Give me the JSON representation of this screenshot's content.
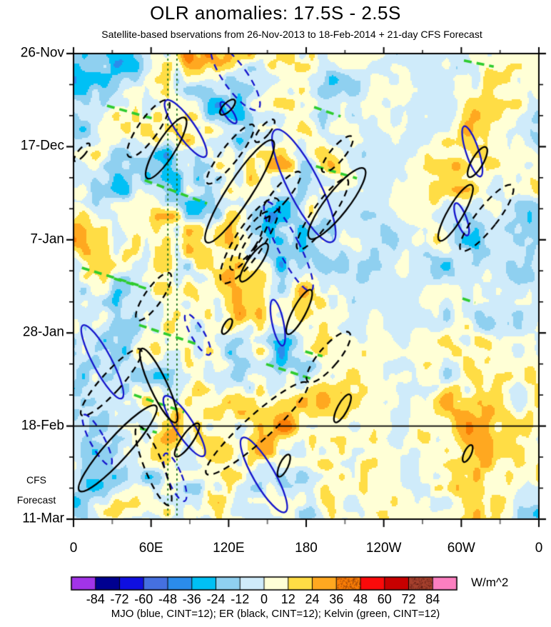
{
  "page": {
    "title": "OLR anomalies: 17.5S - 2.5S",
    "subtitle": "Satellite-based bservations from 26-Nov-2013 to 18-Feb-2014 + 21-day CFS Forecast"
  },
  "chart_data": {
    "type": "heatmap",
    "title": "OLR anomalies: 17.5S - 2.5S",
    "subtitle": "Satellite-based bservations from 26-Nov-2013 to 18-Feb-2014 + 21-day CFS Forecast",
    "description": "Hovmoller (time-longitude) diagram of OLR anomalies averaged 17.5S-2.5S; filled contours of anomaly magnitude with MJO, ER and Kelvin wave contour overlays; observations above the 18-Feb line, 21-day CFS forecast below.",
    "x_axis": {
      "range_deg": [
        0,
        360
      ],
      "major_ticks": [
        {
          "label": "0",
          "lon": 0
        },
        {
          "label": "60E",
          "lon": 60
        },
        {
          "label": "120E",
          "lon": 120
        },
        {
          "label": "180",
          "lon": 180
        },
        {
          "label": "120W",
          "lon": 240
        },
        {
          "label": "60W",
          "lon": 300
        },
        {
          "label": "0",
          "lon": 360
        }
      ],
      "minor_step_deg": 30
    },
    "y_axis": {
      "range_days": [
        0,
        105
      ],
      "major_ticks": [
        {
          "label": "26-Nov",
          "day": 0
        },
        {
          "label": "17-Dec",
          "day": 21
        },
        {
          "label": "7-Jan",
          "day": 42
        },
        {
          "label": "28-Jan",
          "day": 63
        },
        {
          "label": "18-Feb",
          "day": 84
        },
        {
          "label": "11-Mar",
          "day": 105
        }
      ],
      "minor_step_days": 7
    },
    "forecast": {
      "divider_day": 84,
      "divider_date": "18-Feb",
      "label_line1": "CFS",
      "label_line2": "Forecast"
    },
    "colorbar": {
      "units": "W/m^2",
      "levels": [
        -84,
        -72,
        -60,
        -48,
        -36,
        -24,
        -12,
        0,
        12,
        24,
        36,
        48,
        60,
        72,
        84
      ],
      "colors": [
        "#A234E8",
        "#000090",
        "#0F0FE0",
        "#4570E0",
        "#2B8CEB",
        "#00C0F5",
        "#8FD0F0",
        "#CFEBFA",
        "#FFFFD6",
        "#FFDD45",
        "#FFA820",
        "#F97D06",
        "#FB0A0A",
        "#C80000",
        "#A5402D",
        "#FC7FC0"
      ],
      "textured_segment_indices": [
        11,
        14
      ]
    },
    "legend_caption": "MJO (blue, CINT=12); ER (black, CINT=12); Kelvin (green, CINT=12)",
    "contour_colors": {
      "mjo": "#1414CC",
      "er": "#000000",
      "kelvin": "#2ECC2E",
      "kelvin_guides": "#157015"
    },
    "vertical_guide_lons": [
      73,
      80
    ],
    "ellipses": [
      {
        "c": "mjo",
        "dash": false,
        "fx": 0.241,
        "fy": 0.161,
        "a": 48,
        "b": 13,
        "rot": -35
      },
      {
        "c": "mjo",
        "dash": false,
        "fx": 0.495,
        "fy": 0.284,
        "a": 88,
        "b": 22,
        "rot": -27
      },
      {
        "c": "mjo",
        "dash": false,
        "fx": 0.857,
        "fy": 0.21,
        "a": 37,
        "b": 9,
        "rot": -18
      },
      {
        "c": "mjo",
        "dash": false,
        "fx": 0.834,
        "fy": 0.356,
        "a": 24,
        "b": 7,
        "rot": -20
      },
      {
        "c": "mjo",
        "dash": false,
        "fx": 0.062,
        "fy": 0.662,
        "a": 58,
        "b": 13,
        "rot": -28
      },
      {
        "c": "mjo",
        "dash": false,
        "fx": 0.238,
        "fy": 0.8,
        "a": 50,
        "b": 13,
        "rot": -33
      },
      {
        "c": "mjo",
        "dash": false,
        "fx": 0.409,
        "fy": 0.905,
        "a": 60,
        "b": 15,
        "rot": -30
      },
      {
        "c": "mjo",
        "dash": false,
        "fx": 0.439,
        "fy": 0.578,
        "a": 33,
        "b": 8,
        "rot": -12
      },
      {
        "c": "mjo",
        "dash": false,
        "fx": 0.333,
        "fy": 0.127,
        "a": 18,
        "b": 6,
        "rot": -35
      },
      {
        "c": "mjo",
        "dash": true,
        "fx": 0.348,
        "fy": 0.051,
        "a": 55,
        "b": 17,
        "rot": -35
      },
      {
        "c": "mjo",
        "dash": true,
        "fx": 0.267,
        "fy": 0.603,
        "a": 33,
        "b": 9,
        "rot": -30
      },
      {
        "c": "mjo",
        "dash": true,
        "fx": 0.051,
        "fy": 0.83,
        "a": 40,
        "b": 10,
        "rot": -28
      },
      {
        "c": "mjo",
        "dash": true,
        "fx": 0.462,
        "fy": 0.414,
        "a": 70,
        "b": 15,
        "rot": -27
      },
      {
        "c": "mjo",
        "dash": true,
        "fx": 0.218,
        "fy": 0.91,
        "a": 36,
        "b": 10,
        "rot": -22
      },
      {
        "c": "er",
        "dash": false,
        "fx": 0.199,
        "fy": 0.203,
        "a": 50,
        "b": 13,
        "rot": 32
      },
      {
        "c": "er",
        "dash": false,
        "fx": 0.357,
        "fy": 0.296,
        "a": 85,
        "b": 17,
        "rot": 33
      },
      {
        "c": "er",
        "dash": false,
        "fx": 0.095,
        "fy": 0.848,
        "a": 80,
        "b": 16,
        "rot": 42
      },
      {
        "c": "er",
        "dash": false,
        "fx": 0.183,
        "fy": 0.713,
        "a": 57,
        "b": 12,
        "rot": -25
      },
      {
        "c": "er",
        "dash": false,
        "fx": 0.244,
        "fy": 0.83,
        "a": 28,
        "b": 8,
        "rot": 35
      },
      {
        "c": "er",
        "dash": false,
        "fx": 0.485,
        "fy": 0.555,
        "a": 35,
        "b": 9,
        "rot": 28
      },
      {
        "c": "er",
        "dash": false,
        "fx": 0.33,
        "fy": 0.586,
        "a": 12,
        "b": 5,
        "rot": 30
      },
      {
        "c": "er",
        "dash": false,
        "fx": 0.566,
        "fy": 0.322,
        "a": 62,
        "b": 16,
        "rot": 38
      },
      {
        "c": "er",
        "dash": false,
        "fx": 0.388,
        "fy": 0.449,
        "a": 32,
        "b": 9,
        "rot": 35
      },
      {
        "c": "er",
        "dash": false,
        "fx": 0.821,
        "fy": 0.342,
        "a": 45,
        "b": 11,
        "rot": 30
      },
      {
        "c": "er",
        "dash": false,
        "fx": 0.868,
        "fy": 0.233,
        "a": 24,
        "b": 8,
        "rot": 30
      },
      {
        "c": "er",
        "dash": false,
        "fx": 0.578,
        "fy": 0.762,
        "a": 22,
        "b": 7,
        "rot": 28
      },
      {
        "c": "er",
        "dash": false,
        "fx": 0.847,
        "fy": 0.859,
        "a": 13,
        "b": 5,
        "rot": 25
      },
      {
        "c": "er",
        "dash": false,
        "fx": 0.452,
        "fy": 0.885,
        "a": 17,
        "b": 6,
        "rot": 25
      },
      {
        "c": "er",
        "dash": false,
        "fx": 0.331,
        "fy": 0.115,
        "a": 14,
        "b": 6,
        "rot": 45
      },
      {
        "c": "er",
        "dash": true,
        "fx": 0.161,
        "fy": 0.161,
        "a": 48,
        "b": 14,
        "rot": 35
      },
      {
        "c": "er",
        "dash": true,
        "fx": 0.337,
        "fy": 0.216,
        "a": 52,
        "b": 12,
        "rot": 38
      },
      {
        "c": "er",
        "dash": true,
        "fx": 0.411,
        "fy": 0.166,
        "a": 20,
        "b": 7,
        "rot": 40
      },
      {
        "c": "er",
        "dash": true,
        "fx": 0.445,
        "fy": 0.304,
        "a": 42,
        "b": 11,
        "rot": 40
      },
      {
        "c": "er",
        "dash": true,
        "fx": 0.379,
        "fy": 0.402,
        "a": 70,
        "b": 20,
        "rot": 33
      },
      {
        "c": "er",
        "dash": true,
        "fx": 0.379,
        "fy": 0.402,
        "a": 48,
        "b": 12,
        "rot": 33
      },
      {
        "c": "er",
        "dash": true,
        "fx": 0.381,
        "fy": 0.408,
        "a": 28,
        "b": 7,
        "rot": 33
      },
      {
        "c": "er",
        "dash": true,
        "fx": 0.535,
        "fy": 0.345,
        "a": 60,
        "b": 14,
        "rot": 35
      },
      {
        "c": "er",
        "dash": true,
        "fx": 0.567,
        "fy": 0.216,
        "a": 32,
        "b": 10,
        "rot": 40
      },
      {
        "c": "er",
        "dash": true,
        "fx": 0.081,
        "fy": 0.706,
        "a": 62,
        "b": 14,
        "rot": 42
      },
      {
        "c": "er",
        "dash": true,
        "fx": 0.172,
        "fy": 0.885,
        "a": 60,
        "b": 13,
        "rot": -22
      },
      {
        "c": "er",
        "dash": true,
        "fx": 0.394,
        "fy": 0.805,
        "a": 95,
        "b": 18,
        "rot": 48
      },
      {
        "c": "er",
        "dash": true,
        "fx": 0.548,
        "fy": 0.652,
        "a": 45,
        "b": 14,
        "rot": 40
      },
      {
        "c": "er",
        "dash": true,
        "fx": 0.172,
        "fy": 0.522,
        "a": 40,
        "b": 12,
        "rot": 35
      },
      {
        "c": "er",
        "dash": true,
        "fx": 0.888,
        "fy": 0.353,
        "a": 58,
        "b": 15,
        "rot": 38
      },
      {
        "c": "er",
        "dash": true,
        "fx": 0.018,
        "fy": 0.212,
        "a": 16,
        "b": 5,
        "rot": 40
      }
    ],
    "kelvin_segments": [
      {
        "x1": 0.072,
        "y1": 0.112,
        "x2": 0.172,
        "y2": 0.14
      },
      {
        "x1": 0.153,
        "y1": 0.272,
        "x2": 0.287,
        "y2": 0.322
      },
      {
        "x1": 0.018,
        "y1": 0.46,
        "x2": 0.141,
        "y2": 0.498
      },
      {
        "x1": 0.087,
        "y1": 0.483,
        "x2": 0.167,
        "y2": 0.508
      },
      {
        "x1": 0.141,
        "y1": 0.583,
        "x2": 0.271,
        "y2": 0.626
      },
      {
        "x1": 0.13,
        "y1": 0.733,
        "x2": 0.238,
        "y2": 0.77
      },
      {
        "x1": 0.414,
        "y1": 0.667,
        "x2": 0.509,
        "y2": 0.698
      },
      {
        "x1": 0.521,
        "y1": 0.242,
        "x2": 0.609,
        "y2": 0.268
      },
      {
        "x1": 0.517,
        "y1": 0.115,
        "x2": 0.574,
        "y2": 0.135
      },
      {
        "x1": 0.839,
        "y1": 0.015,
        "x2": 0.903,
        "y2": 0.028
      },
      {
        "x1": 0.143,
        "y1": 0.805,
        "x2": 0.179,
        "y2": 0.814
      },
      {
        "x1": 0.836,
        "y1": 0.526,
        "x2": 0.863,
        "y2": 0.535
      },
      {
        "x1": 0.498,
        "y1": 0.64,
        "x2": 0.535,
        "y2": 0.65
      }
    ],
    "noise_field": {
      "seed": 7,
      "amplitude": 50,
      "octaves": [
        {
          "sx": 40,
          "sy": 14,
          "w": 0.5
        },
        {
          "sx": 18,
          "sy": 6,
          "w": 0.38
        },
        {
          "sx": 8,
          "sy": 2.8,
          "w": 0.3
        }
      ],
      "envelope_lons": [
        0,
        30,
        60,
        100,
        140,
        180,
        210,
        235,
        265,
        290,
        310,
        330,
        360
      ],
      "envelope_amps": [
        0.8,
        0.95,
        1.0,
        1.1,
        1.1,
        1.0,
        0.7,
        0.45,
        0.45,
        0.85,
        0.85,
        0.5,
        0.75
      ]
    }
  }
}
